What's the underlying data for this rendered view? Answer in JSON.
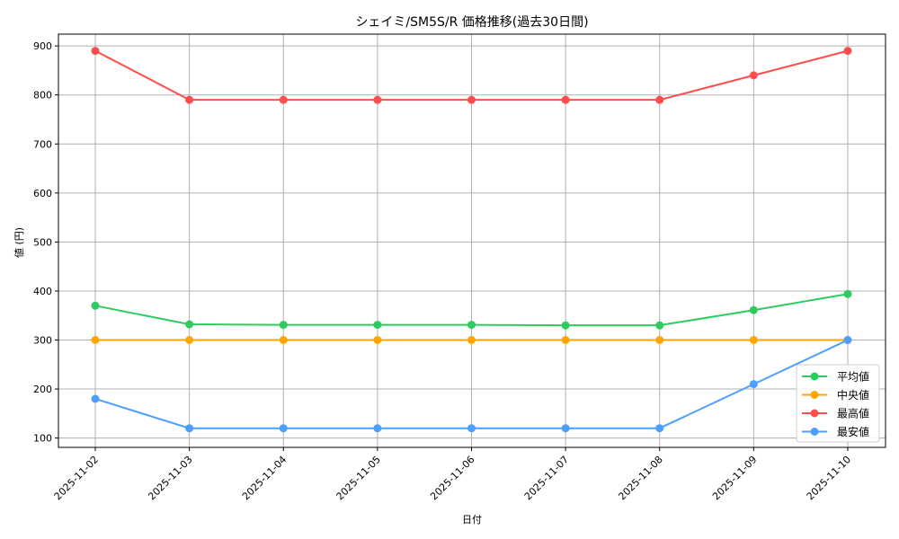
{
  "chart_data": {
    "type": "line",
    "title": "シェイミ/SM5S/R 価格推移(過去30日間)",
    "xlabel": "日付",
    "ylabel": "値 (円)",
    "categories": [
      "2025-11-02",
      "2025-11-03",
      "2025-11-04",
      "2025-11-05",
      "2025-11-06",
      "2025-11-07",
      "2025-11-08",
      "2025-11-09",
      "2025-11-10"
    ],
    "series": [
      {
        "name": "平均値",
        "color": "#2ecc5f",
        "values": [
          370,
          332,
          331,
          331,
          331,
          330,
          330,
          361,
          394
        ]
      },
      {
        "name": "中央値",
        "color": "#ffa500",
        "values": [
          300,
          300,
          300,
          300,
          300,
          300,
          300,
          300,
          300
        ]
      },
      {
        "name": "最高値",
        "color": "#ff4d4d",
        "values": [
          890,
          790,
          790,
          790,
          790,
          790,
          790,
          840,
          890
        ]
      },
      {
        "name": "最安値",
        "color": "#4d9fff",
        "values": [
          180,
          120,
          120,
          120,
          120,
          120,
          120,
          210,
          300
        ]
      }
    ],
    "yticks": [
      100,
      200,
      300,
      400,
      500,
      600,
      700,
      800,
      900
    ],
    "ylim": [
      80,
      925
    ],
    "grid": true,
    "legend_position": "lower right",
    "marker": "circle"
  }
}
